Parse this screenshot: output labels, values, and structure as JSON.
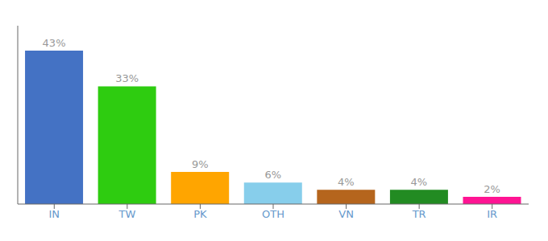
{
  "chart_data": {
    "type": "bar",
    "categories": [
      "IN",
      "TW",
      "PK",
      "OTH",
      "VN",
      "TR",
      "IR"
    ],
    "values": [
      43,
      33,
      9,
      6,
      4,
      4,
      2
    ],
    "value_labels": [
      "43%",
      "33%",
      "9%",
      "6%",
      "4%",
      "4%",
      "2%"
    ],
    "data_labels": true,
    "colors": [
      "#4472c4",
      "#2ecc10",
      "#ffa500",
      "#87ceeb",
      "#b5651d",
      "#228b22",
      "#ff1493"
    ],
    "ylim": [
      0,
      50
    ],
    "tick_labels": "x",
    "grid": false
  }
}
